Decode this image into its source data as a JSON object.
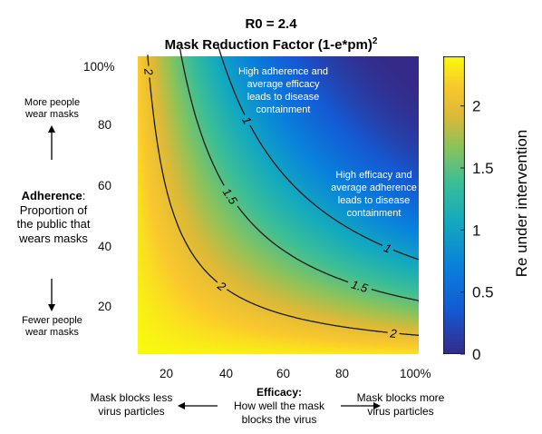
{
  "chart_data": {
    "type": "heatmap",
    "title_line1": "R0 = 2.4",
    "title_line2": "Mask Reduction Factor (1-e*pm)",
    "title_sup": "2",
    "r0": 2.4,
    "x_axis": {
      "ticks": [
        "20",
        "40",
        "60",
        "80",
        "100%"
      ],
      "tick_values": [
        20,
        40,
        60,
        80,
        100
      ],
      "range": [
        5,
        105
      ]
    },
    "y_axis": {
      "ticks": [
        "20",
        "40",
        "60",
        "80",
        "100%"
      ],
      "tick_values": [
        20,
        40,
        60,
        80,
        100
      ],
      "range": [
        2,
        102
      ]
    },
    "xlabel_title": "Efficacy:",
    "xlabel_sub1": "How well the mask",
    "xlabel_sub2": "blocks the virus",
    "x_left_note1": "Mask blocks less",
    "x_left_note2": "virus particles",
    "x_right_note1": "Mask blocks more",
    "x_right_note2": "virus particles",
    "ylabel_title": "Adherence",
    "ylabel_colon": ":",
    "ylabel_sub1": "Proportion of",
    "ylabel_sub2": "the public that",
    "ylabel_sub3": "wears masks",
    "y_top_note1": "More people",
    "y_top_note2": "wear masks",
    "y_bottom_note1": "Fewer people",
    "y_bottom_note2": "wear masks",
    "contours": [
      {
        "level": 2,
        "label": "2"
      },
      {
        "level": 1.5,
        "label": "1.5"
      },
      {
        "level": 1,
        "label": "1"
      }
    ],
    "annotations": [
      {
        "lines": [
          "High adherence and",
          "average efficacy",
          "leads to disease",
          "containment"
        ]
      },
      {
        "lines": [
          "High efficacy and",
          "average adherence",
          "leads to disease",
          "containment"
        ]
      }
    ],
    "colorbar": {
      "label": "Re under intervention",
      "ticks": [
        "0",
        "0.5",
        "1",
        "1.5",
        "2"
      ],
      "tick_values": [
        0,
        0.5,
        1,
        1.5,
        2
      ],
      "range": [
        0,
        2.4
      ],
      "colormap": "parula"
    }
  }
}
